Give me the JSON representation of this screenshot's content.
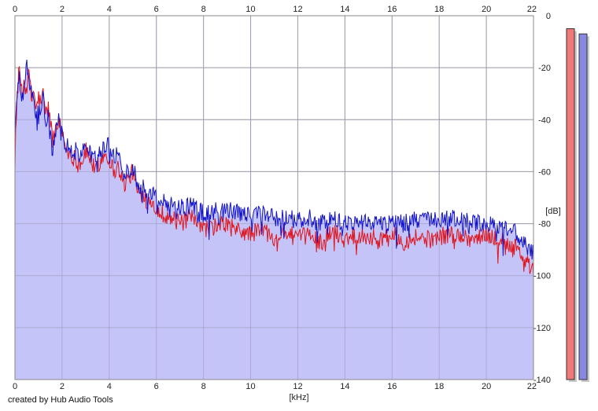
{
  "credit": "created by Hub Audio Tools",
  "chart_data": {
    "type": "area",
    "xlabel": "[kHz]",
    "ylabel": "[dB]",
    "xlim": [
      0,
      22
    ],
    "ylim": [
      -140,
      0
    ],
    "x_ticks": [
      0,
      2,
      4,
      6,
      8,
      10,
      12,
      14,
      16,
      18,
      20,
      22
    ],
    "y_ticks": [
      0,
      -20,
      -40,
      -60,
      -80,
      -100,
      -120,
      -140
    ],
    "y_tick_labels": [
      "0",
      "-20",
      "-40",
      "-60",
      "-80",
      "-100",
      "-120",
      "-140"
    ],
    "grid": true,
    "fill_color": "#c4c4f8",
    "series": [
      {
        "color": "#e0141c",
        "x": [
          0,
          0.1,
          0.2,
          0.3,
          0.4,
          0.5,
          0.6,
          0.7,
          0.8,
          0.9,
          1.0,
          1.1,
          1.2,
          1.3,
          1.4,
          1.5,
          1.6,
          1.7,
          1.8,
          1.9,
          2.0,
          2.2,
          2.4,
          2.6,
          2.8,
          3.0,
          3.2,
          3.4,
          3.6,
          3.8,
          4.0,
          4.2,
          4.4,
          4.6,
          4.8,
          5.0,
          5.2,
          5.4,
          5.6,
          5.8,
          6.0,
          6.5,
          7.0,
          7.5,
          8.0,
          8.5,
          9.0,
          9.5,
          10.0,
          10.5,
          11.0,
          11.5,
          12.0,
          12.5,
          13.0,
          13.5,
          14.0,
          14.5,
          15.0,
          15.5,
          16.0,
          16.5,
          17.0,
          17.5,
          18.0,
          18.5,
          19.0,
          19.5,
          20.0,
          20.5,
          21.0,
          21.3,
          21.6,
          21.8,
          22.0
        ],
        "values": [
          -52,
          -28,
          -20,
          -32,
          -24,
          -27,
          -22,
          -33,
          -28,
          -37,
          -31,
          -34,
          -30,
          -38,
          -35,
          -40,
          -48,
          -44,
          -40,
          -42,
          -45,
          -52,
          -54,
          -55,
          -57,
          -52,
          -55,
          -60,
          -56,
          -53,
          -55,
          -60,
          -58,
          -65,
          -63,
          -60,
          -68,
          -66,
          -72,
          -70,
          -75,
          -77,
          -80,
          -78,
          -82,
          -81,
          -80,
          -83,
          -84,
          -82,
          -85,
          -83,
          -86,
          -84,
          -87,
          -83,
          -86,
          -84,
          -85,
          -86,
          -84,
          -87,
          -85,
          -86,
          -85,
          -84,
          -85,
          -86,
          -84,
          -86,
          -88,
          -90,
          -93,
          -96,
          -98
        ]
      },
      {
        "color": "#1414c8",
        "x": [
          0,
          0.1,
          0.2,
          0.3,
          0.4,
          0.5,
          0.6,
          0.7,
          0.8,
          0.9,
          1.0,
          1.1,
          1.2,
          1.3,
          1.4,
          1.5,
          1.6,
          1.7,
          1.8,
          1.9,
          2.0,
          2.2,
          2.4,
          2.6,
          2.8,
          3.0,
          3.2,
          3.4,
          3.6,
          3.8,
          4.0,
          4.2,
          4.4,
          4.6,
          4.8,
          5.0,
          5.2,
          5.4,
          5.6,
          5.8,
          6.0,
          6.5,
          7.0,
          7.5,
          8.0,
          8.5,
          9.0,
          9.5,
          10.0,
          10.5,
          11.0,
          11.5,
          12.0,
          12.5,
          13.0,
          13.5,
          14.0,
          14.5,
          15.0,
          15.5,
          16.0,
          16.5,
          17.0,
          17.5,
          18.0,
          18.5,
          19.0,
          19.5,
          20.0,
          20.5,
          21.0,
          21.3,
          21.6,
          21.8,
          22.0
        ],
        "values": [
          -45,
          -30,
          -24,
          -34,
          -26,
          -20,
          -24,
          -30,
          -34,
          -40,
          -36,
          -38,
          -32,
          -42,
          -38,
          -46,
          -52,
          -48,
          -42,
          -40,
          -46,
          -50,
          -52,
          -52,
          -54,
          -50,
          -53,
          -55,
          -52,
          -50,
          -50,
          -53,
          -55,
          -60,
          -60,
          -58,
          -64,
          -66,
          -68,
          -68,
          -70,
          -72,
          -74,
          -73,
          -76,
          -75,
          -75,
          -76,
          -77,
          -76,
          -78,
          -77,
          -79,
          -78,
          -80,
          -78,
          -80,
          -79,
          -79,
          -80,
          -79,
          -80,
          -78,
          -79,
          -79,
          -78,
          -79,
          -80,
          -80,
          -81,
          -82,
          -84,
          -88,
          -90,
          -92
        ]
      }
    ]
  },
  "meters": [
    {
      "color": "#f07878",
      "level_db": -5
    },
    {
      "color": "#8888e0",
      "level_db": -7
    }
  ]
}
